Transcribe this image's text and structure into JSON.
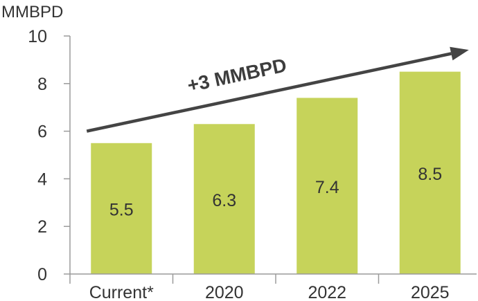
{
  "chart_data": {
    "type": "bar",
    "title": "",
    "ylabel": "MMBPD",
    "xlabel": "",
    "categories": [
      "Current*",
      "2020",
      "2022",
      "2025"
    ],
    "values": [
      5.5,
      6.3,
      7.4,
      8.5
    ],
    "value_labels": [
      "5.5",
      "6.3",
      "7.4",
      "8.5"
    ],
    "ylim": [
      0,
      10
    ],
    "yticks": [
      0,
      2,
      4,
      6,
      8,
      10
    ],
    "grid": false,
    "annotation": {
      "text": "+3 MMBPD",
      "arrow_from": {
        "category_index": 0,
        "value": 6.0
      },
      "arrow_to": {
        "category_index": 3,
        "value": 9.3
      }
    }
  },
  "colors": {
    "bar": "#c6d35a",
    "axis": "#9a9a9a",
    "arrow": "#444444",
    "text": "#333333"
  }
}
